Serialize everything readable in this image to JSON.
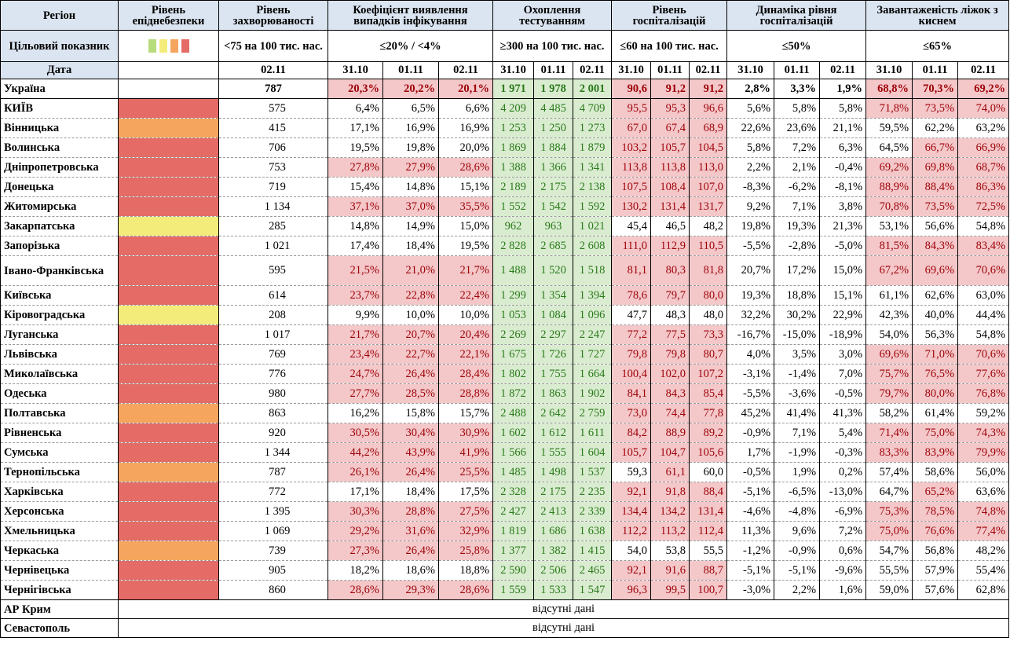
{
  "headers": {
    "region": "Регіон",
    "epi_level": "Рівень епіднебезпеки",
    "incidence": "Рівень захворюваності",
    "detection": "Коефіцієнт виявлення випадків інфікування",
    "testing": "Охоплення тестуванням",
    "hospital": "Рівень госпіталізацій",
    "dynamics": "Динаміка рівня госпіталізацій",
    "oxygen": "Завантаженість ліжок з киснем"
  },
  "target": {
    "label": "Цільовий показник",
    "incidence": "<75 на 100 тис. нас.",
    "detection": "≤20% / <4%",
    "testing": "≥300 на 100 тис. нас.",
    "hospital": "≤60 на 100 тис. нас.",
    "dynamics": "≤50%",
    "oxygen": "≤65%"
  },
  "legend_colors": [
    "#b7dc7c",
    "#f3ec7a",
    "#f5a55e",
    "#e46b66"
  ],
  "dates": {
    "label": "Дата",
    "incidence": "02.11",
    "d1": "31.10",
    "d2": "01.11",
    "d3": "02.11"
  },
  "level_colors": {
    "r": "#e46b66",
    "o": "#f5a55e",
    "y": "#f3ec7a"
  },
  "ukraine": {
    "name": "Україна",
    "inc": "787",
    "det": [
      "20,3%",
      "20,2%",
      "20,1%"
    ],
    "tst": [
      "1 971",
      "1 978",
      "2 001"
    ],
    "hosp": [
      "90,6",
      "91,2",
      "91,2"
    ],
    "dyn": [
      "2,8%",
      "3,3%",
      "1,9%"
    ],
    "oxy": [
      "68,8%",
      "70,3%",
      "69,2%"
    ]
  },
  "regions": [
    {
      "name": "КИЇВ",
      "lvl": "r",
      "inc": "575",
      "det": [
        "6,4%",
        "6,5%",
        "6,6%"
      ],
      "tst": [
        "4 209",
        "4 485",
        "4 709"
      ],
      "hosp": [
        "95,5",
        "95,3",
        "96,6"
      ],
      "dyn": [
        "5,6%",
        "5,8%",
        "5,8%"
      ],
      "oxy": [
        "71,8%",
        "73,5%",
        "74,0%"
      ]
    },
    {
      "name": "Вінницька",
      "lvl": "o",
      "inc": "415",
      "det": [
        "17,1%",
        "16,9%",
        "16,9%"
      ],
      "tst": [
        "1 253",
        "1 250",
        "1 273"
      ],
      "hosp": [
        "67,0",
        "67,4",
        "68,9"
      ],
      "dyn": [
        "22,6%",
        "23,6%",
        "21,1%"
      ],
      "oxy": [
        "59,5%",
        "62,2%",
        "63,2%"
      ]
    },
    {
      "name": "Волинська",
      "lvl": "r",
      "inc": "706",
      "det": [
        "19,5%",
        "19,8%",
        "20,0%"
      ],
      "tst": [
        "1 869",
        "1 884",
        "1 879"
      ],
      "hosp": [
        "103,2",
        "105,7",
        "104,5"
      ],
      "dyn": [
        "5,8%",
        "7,2%",
        "6,3%"
      ],
      "oxy": [
        "64,5%",
        "66,7%",
        "66,9%"
      ]
    },
    {
      "name": "Дніпропетровська",
      "lvl": "r",
      "inc": "753",
      "det": [
        "27,8%",
        "27,9%",
        "28,6%"
      ],
      "tst": [
        "1 388",
        "1 366",
        "1 341"
      ],
      "hosp": [
        "113,8",
        "113,8",
        "113,0"
      ],
      "dyn": [
        "2,2%",
        "2,1%",
        "-0,4%"
      ],
      "oxy": [
        "69,2%",
        "69,8%",
        "68,7%"
      ]
    },
    {
      "name": "Донецька",
      "lvl": "r",
      "inc": "719",
      "det": [
        "15,4%",
        "14,8%",
        "15,1%"
      ],
      "tst": [
        "2 189",
        "2 175",
        "2 138"
      ],
      "hosp": [
        "107,5",
        "108,4",
        "107,0"
      ],
      "dyn": [
        "-8,3%",
        "-6,2%",
        "-8,1%"
      ],
      "oxy": [
        "88,9%",
        "88,4%",
        "86,3%"
      ]
    },
    {
      "name": "Житомирська",
      "lvl": "r",
      "inc": "1 134",
      "det": [
        "37,1%",
        "37,0%",
        "35,5%"
      ],
      "tst": [
        "1 552",
        "1 542",
        "1 592"
      ],
      "hosp": [
        "130,2",
        "131,4",
        "131,7"
      ],
      "dyn": [
        "9,2%",
        "7,1%",
        "3,8%"
      ],
      "oxy": [
        "70,8%",
        "73,5%",
        "72,5%"
      ]
    },
    {
      "name": "Закарпатська",
      "lvl": "y",
      "inc": "285",
      "det": [
        "14,8%",
        "14,9%",
        "15,0%"
      ],
      "tst": [
        "962",
        "963",
        "1 021"
      ],
      "hosp": [
        "45,4",
        "46,5",
        "48,2"
      ],
      "dyn": [
        "19,8%",
        "19,3%",
        "21,3%"
      ],
      "oxy": [
        "53,1%",
        "56,6%",
        "54,8%"
      ]
    },
    {
      "name": "Запорізька",
      "lvl": "r",
      "inc": "1 021",
      "det": [
        "17,4%",
        "18,4%",
        "19,5%"
      ],
      "tst": [
        "2 828",
        "2 685",
        "2 608"
      ],
      "hosp": [
        "111,0",
        "112,9",
        "110,5"
      ],
      "dyn": [
        "-5,5%",
        "-2,8%",
        "-5,0%"
      ],
      "oxy": [
        "81,5%",
        "84,3%",
        "83,4%"
      ]
    },
    {
      "name": "Івано-Франківська",
      "lvl": "r",
      "inc": "595",
      "det": [
        "21,5%",
        "21,0%",
        "21,7%"
      ],
      "tst": [
        "1 488",
        "1 520",
        "1 518"
      ],
      "hosp": [
        "81,1",
        "80,3",
        "81,8"
      ],
      "dyn": [
        "20,7%",
        "17,2%",
        "15,0%"
      ],
      "oxy": [
        "67,2%",
        "69,6%",
        "70,6%"
      ],
      "tall": true
    },
    {
      "name": "Київська",
      "lvl": "r",
      "inc": "614",
      "det": [
        "23,7%",
        "22,8%",
        "22,4%"
      ],
      "tst": [
        "1 299",
        "1 354",
        "1 394"
      ],
      "hosp": [
        "78,6",
        "79,7",
        "80,0"
      ],
      "dyn": [
        "19,3%",
        "18,8%",
        "15,1%"
      ],
      "oxy": [
        "61,1%",
        "62,6%",
        "63,0%"
      ]
    },
    {
      "name": "Кіровоградська",
      "lvl": "y",
      "inc": "208",
      "det": [
        "9,9%",
        "10,0%",
        "10,0%"
      ],
      "tst": [
        "1 053",
        "1 084",
        "1 096"
      ],
      "hosp": [
        "47,7",
        "48,3",
        "48,0"
      ],
      "dyn": [
        "32,2%",
        "30,2%",
        "22,9%"
      ],
      "oxy": [
        "42,3%",
        "40,0%",
        "44,4%"
      ]
    },
    {
      "name": "Луганська",
      "lvl": "r",
      "inc": "1 017",
      "det": [
        "21,7%",
        "20,7%",
        "20,4%"
      ],
      "tst": [
        "2 269",
        "2 297",
        "2 247"
      ],
      "hosp": [
        "77,2",
        "77,5",
        "73,3"
      ],
      "dyn": [
        "-16,7%",
        "-15,0%",
        "-18,9%"
      ],
      "oxy": [
        "54,0%",
        "56,3%",
        "54,8%"
      ]
    },
    {
      "name": "Львівська",
      "lvl": "r",
      "inc": "769",
      "det": [
        "23,4%",
        "22,7%",
        "22,1%"
      ],
      "tst": [
        "1 675",
        "1 726",
        "1 727"
      ],
      "hosp": [
        "79,8",
        "79,8",
        "80,7"
      ],
      "dyn": [
        "4,0%",
        "3,5%",
        "3,0%"
      ],
      "oxy": [
        "69,6%",
        "71,0%",
        "70,6%"
      ]
    },
    {
      "name": "Миколаївська",
      "lvl": "r",
      "inc": "776",
      "det": [
        "24,7%",
        "26,4%",
        "28,4%"
      ],
      "tst": [
        "1 802",
        "1 755",
        "1 664"
      ],
      "hosp": [
        "100,4",
        "102,0",
        "107,2"
      ],
      "dyn": [
        "-3,1%",
        "-1,4%",
        "7,0%"
      ],
      "oxy": [
        "75,7%",
        "76,5%",
        "77,6%"
      ]
    },
    {
      "name": "Одеська",
      "lvl": "r",
      "inc": "980",
      "det": [
        "27,7%",
        "28,5%",
        "28,8%"
      ],
      "tst": [
        "1 872",
        "1 863",
        "1 902"
      ],
      "hosp": [
        "84,1",
        "84,3",
        "85,4"
      ],
      "dyn": [
        "-5,5%",
        "-3,6%",
        "-0,5%"
      ],
      "oxy": [
        "79,7%",
        "80,0%",
        "76,8%"
      ]
    },
    {
      "name": "Полтавська",
      "lvl": "o",
      "inc": "863",
      "det": [
        "16,2%",
        "15,8%",
        "15,7%"
      ],
      "tst": [
        "2 488",
        "2 642",
        "2 759"
      ],
      "hosp": [
        "73,0",
        "74,4",
        "77,8"
      ],
      "dyn": [
        "45,2%",
        "41,4%",
        "41,3%"
      ],
      "oxy": [
        "58,2%",
        "61,4%",
        "59,2%"
      ]
    },
    {
      "name": "Рівненська",
      "lvl": "r",
      "inc": "920",
      "det": [
        "30,5%",
        "30,4%",
        "30,9%"
      ],
      "tst": [
        "1 602",
        "1 612",
        "1 611"
      ],
      "hosp": [
        "84,2",
        "88,9",
        "89,2"
      ],
      "dyn": [
        "-0,9%",
        "7,1%",
        "5,4%"
      ],
      "oxy": [
        "71,4%",
        "75,0%",
        "74,3%"
      ]
    },
    {
      "name": "Сумська",
      "lvl": "r",
      "inc": "1 344",
      "det": [
        "44,2%",
        "43,9%",
        "41,9%"
      ],
      "tst": [
        "1 566",
        "1 555",
        "1 604"
      ],
      "hosp": [
        "105,7",
        "104,7",
        "105,6"
      ],
      "dyn": [
        "1,7%",
        "-1,9%",
        "-0,3%"
      ],
      "oxy": [
        "83,3%",
        "83,9%",
        "79,9%"
      ]
    },
    {
      "name": "Тернопільська",
      "lvl": "o",
      "inc": "787",
      "det": [
        "26,1%",
        "26,4%",
        "25,5%"
      ],
      "tst": [
        "1 485",
        "1 498",
        "1 537"
      ],
      "hosp": [
        "59,3",
        "61,1",
        "60,0"
      ],
      "dyn": [
        "-0,5%",
        "1,9%",
        "0,2%"
      ],
      "oxy": [
        "57,4%",
        "58,6%",
        "56,0%"
      ]
    },
    {
      "name": "Харківська",
      "lvl": "r",
      "inc": "772",
      "det": [
        "17,1%",
        "18,4%",
        "17,5%"
      ],
      "tst": [
        "2 328",
        "2 175",
        "2 235"
      ],
      "hosp": [
        "92,1",
        "91,8",
        "88,4"
      ],
      "dyn": [
        "-5,1%",
        "-6,5%",
        "-13,0%"
      ],
      "oxy": [
        "64,7%",
        "65,2%",
        "63,6%"
      ]
    },
    {
      "name": "Херсонська",
      "lvl": "r",
      "inc": "1 395",
      "det": [
        "30,3%",
        "28,8%",
        "27,5%"
      ],
      "tst": [
        "2 427",
        "2 413",
        "2 339"
      ],
      "hosp": [
        "134,4",
        "134,2",
        "131,4"
      ],
      "dyn": [
        "-4,6%",
        "-4,8%",
        "-6,9%"
      ],
      "oxy": [
        "75,3%",
        "78,5%",
        "74,8%"
      ]
    },
    {
      "name": "Хмельницька",
      "lvl": "r",
      "inc": "1 069",
      "det": [
        "29,2%",
        "31,6%",
        "32,9%"
      ],
      "tst": [
        "1 819",
        "1 686",
        "1 638"
      ],
      "hosp": [
        "112,2",
        "113,2",
        "112,4"
      ],
      "dyn": [
        "11,3%",
        "9,6%",
        "7,2%"
      ],
      "oxy": [
        "75,0%",
        "76,6%",
        "77,4%"
      ]
    },
    {
      "name": "Черкаська",
      "lvl": "o",
      "inc": "739",
      "det": [
        "27,3%",
        "26,4%",
        "25,8%"
      ],
      "tst": [
        "1 377",
        "1 382",
        "1 415"
      ],
      "hosp": [
        "54,0",
        "53,8",
        "55,5"
      ],
      "dyn": [
        "-1,2%",
        "-0,9%",
        "0,6%"
      ],
      "oxy": [
        "54,7%",
        "56,8%",
        "48,2%"
      ]
    },
    {
      "name": "Чернівецька",
      "lvl": "r",
      "inc": "905",
      "det": [
        "18,2%",
        "18,6%",
        "18,8%"
      ],
      "tst": [
        "2 590",
        "2 506",
        "2 465"
      ],
      "hosp": [
        "92,1",
        "91,6",
        "88,7"
      ],
      "dyn": [
        "-5,1%",
        "-5,1%",
        "-9,6%"
      ],
      "oxy": [
        "55,5%",
        "57,9%",
        "55,4%"
      ]
    },
    {
      "name": "Чернігівська",
      "lvl": "r",
      "inc": "860",
      "det": [
        "28,6%",
        "29,3%",
        "28,6%"
      ],
      "tst": [
        "1 559",
        "1 533",
        "1 547"
      ],
      "hosp": [
        "96,3",
        "99,5",
        "100,7"
      ],
      "dyn": [
        "-3,0%",
        "2,2%",
        "1,6%"
      ],
      "oxy": [
        "59,0%",
        "57,6%",
        "62,8%"
      ]
    }
  ],
  "no_data_rows": [
    {
      "name": "АР Крим",
      "text": "відсутні дані"
    },
    {
      "name": "Севастополь",
      "text": "відсутні дані"
    }
  ]
}
